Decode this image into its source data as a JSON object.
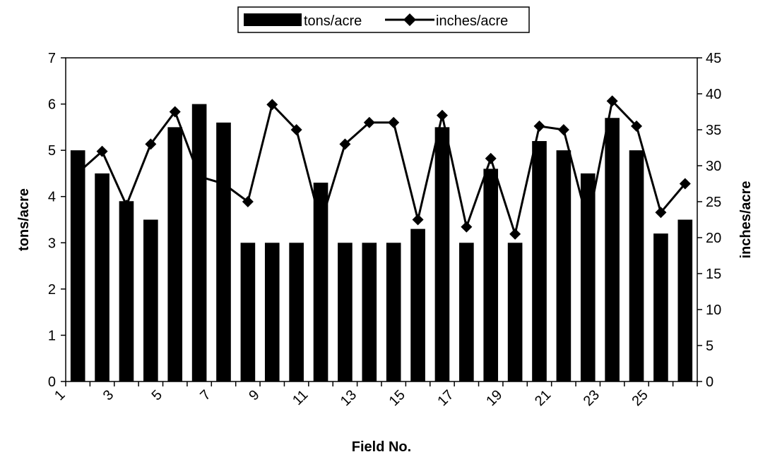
{
  "chart_data": {
    "type": "bar_line",
    "xlabel": "Field No.",
    "ylabel": "tons/acre",
    "y2label": "inches/acre",
    "categories": [
      "1",
      null,
      "3",
      null,
      "5",
      null,
      "7",
      null,
      "9",
      null,
      "11",
      null,
      "13",
      null,
      "15",
      null,
      "17",
      null,
      "19",
      null,
      "21",
      null,
      "23",
      null,
      "25",
      null
    ],
    "series": [
      {
        "name": "tons/acre",
        "type": "bar",
        "color": "#000000",
        "values": [
          5.0,
          4.5,
          3.9,
          3.5,
          5.5,
          6.0,
          5.6,
          3.0,
          3.0,
          3.0,
          4.3,
          3.0,
          3.0,
          3.0,
          3.3,
          5.5,
          3.0,
          4.6,
          3.0,
          5.2,
          5.0,
          4.5,
          5.7,
          5.0,
          3.2,
          3.5
        ]
      },
      {
        "name": "inches/acre",
        "type": "line",
        "axis": "y2",
        "color": "#000000",
        "values": [
          29,
          32,
          24.5,
          33,
          37.5,
          28.5,
          27.5,
          25,
          38.5,
          35,
          22,
          33,
          36,
          36,
          22.5,
          37,
          21.5,
          31,
          20.5,
          35.5,
          35,
          22,
          39,
          35.5,
          23.5,
          27.5
        ]
      }
    ],
    "ylim": [
      0,
      7
    ],
    "yticks": [
      0,
      1,
      2,
      3,
      4,
      5,
      6,
      7
    ],
    "y2lim": [
      0,
      45
    ],
    "y2ticks": [
      0,
      5,
      10,
      15,
      20,
      25,
      30,
      35,
      40,
      45
    ],
    "legend": "top"
  }
}
